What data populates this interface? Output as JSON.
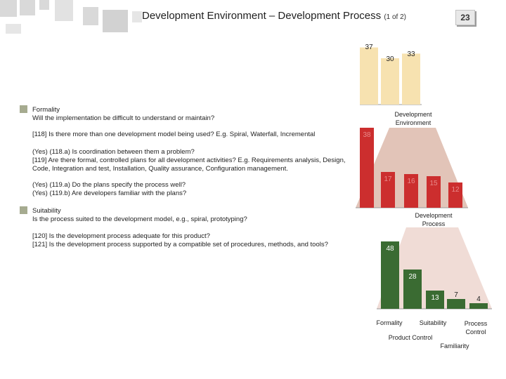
{
  "header": {
    "title": "Development Environment – Development Process",
    "subtitle": "(1 of 2)",
    "page_number": "23"
  },
  "left": {
    "sections": [
      {
        "heading": "Formality",
        "description": "Will the implementation be difficult to understand or maintain?"
      },
      {
        "heading": "Suitability",
        "description": "Is the process suited to the development model, e.g., spiral, prototyping?"
      }
    ],
    "questions": [
      "[118] Is there more than one development model being used? E.g. Spiral, Waterfall, Incremental",
      "(Yes) (118.a) Is coordination between them a problem?",
      "[119] Are there formal, controlled plans for all development activities? E.g. Requirements analysis, Design, Code, Integration and test, Installation, Quality assurance, Configuration management.",
      "(Yes) (119.a) Do the plans specify the process well?",
      "(Yes) (119.b) Are developers familiar with the plans?",
      "[120] Is the development process adequate for this product?",
      "[121] Is the development process supported by a compatible set of procedures, methods, and tools?"
    ]
  },
  "chart_data": [
    {
      "type": "bar",
      "name": "Top",
      "values": [
        37,
        30,
        33
      ],
      "colors": [
        "#f7e2b0"
      ]
    },
    {
      "type": "bar",
      "name": "Development Environment",
      "title": "Development Environment",
      "values": [
        38,
        17,
        16,
        15,
        12
      ],
      "colors": [
        "#cc2e2e"
      ]
    },
    {
      "type": "bar",
      "name": "Development Process",
      "title": "Development Process",
      "categories": [
        "Formality",
        "Product Control",
        "Suitability",
        "Familiarity",
        "Process Control"
      ],
      "values": [
        48,
        28,
        13,
        7,
        4
      ],
      "colors": [
        "#3a6b32"
      ]
    }
  ],
  "colors": {
    "top_bar": "#f7e2b0",
    "red_bar": "#cc2e2e",
    "green_bar": "#3a6b32",
    "cone_top": "#e2c4b8",
    "cone_mid": "#f0dcd6",
    "bullet": "#a6ab90"
  }
}
